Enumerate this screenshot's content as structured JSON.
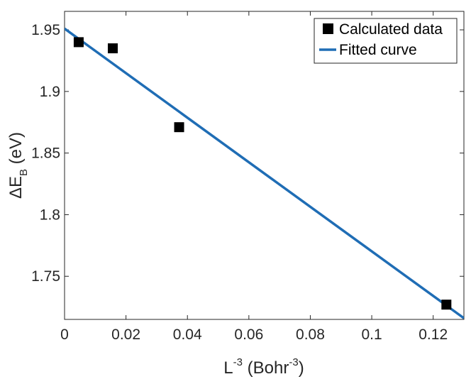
{
  "chart_data": {
    "type": "scatter",
    "title": "",
    "xlabel": {
      "main": "L",
      "exponent": "-3",
      "unit_prefix": " (Bohr",
      "unit_exponent": "-3",
      "unit_suffix": ")"
    },
    "ylabel": {
      "delta": "Δ",
      "main": "E",
      "subscript": "B",
      "unit": " (eV)"
    },
    "xlim": [
      0,
      0.13
    ],
    "ylim": [
      1.715,
      1.965
    ],
    "xticks": [
      0,
      0.02,
      0.04,
      0.06,
      0.08,
      0.1,
      0.12
    ],
    "xtick_labels": [
      "0",
      "0.02",
      "0.04",
      "0.06",
      "0.08",
      "0.1",
      "0.12"
    ],
    "yticks": [
      1.75,
      1.8,
      1.85,
      1.9,
      1.95
    ],
    "ytick_labels": [
      "1.75",
      "1.8",
      "1.85",
      "1.9",
      "1.95"
    ],
    "grid": false,
    "legend_position": "top-right",
    "series": [
      {
        "name": "Calculated data",
        "type": "scatter",
        "marker": "square",
        "color": "#000000",
        "x": [
          0.0046,
          0.0157,
          0.0373,
          0.1243
        ],
        "y": [
          1.94,
          1.935,
          1.871,
          1.727
        ]
      },
      {
        "name": "Fitted curve",
        "type": "line",
        "color": "#1f6db5",
        "x": [
          0,
          0.13
        ],
        "y": [
          1.951,
          1.716
        ]
      }
    ]
  }
}
